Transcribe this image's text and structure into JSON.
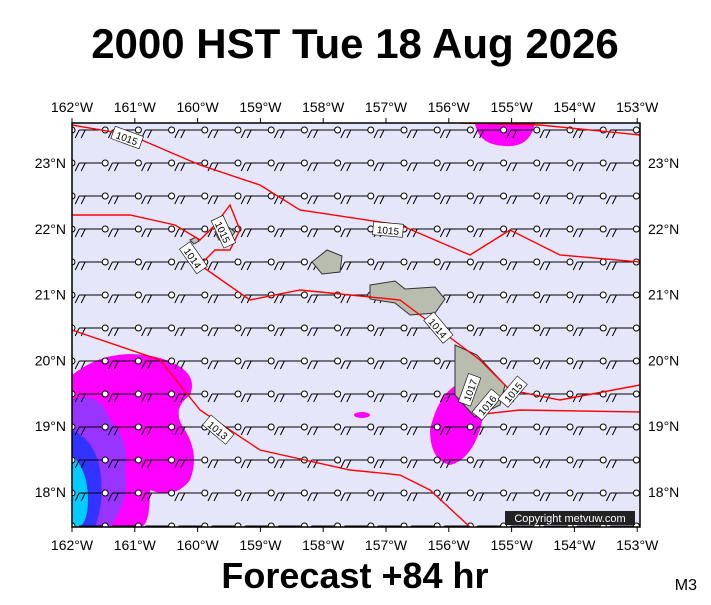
{
  "title": "2000 HST Tue 18 Aug 2026",
  "footer": "Forecast +84 hr",
  "corner": "M3",
  "copyright": "Copyright metvuw.com",
  "lon_labels": [
    "162°W",
    "161°W",
    "160°W",
    "159°W",
    "158°W",
    "157°W",
    "156°W",
    "155°W",
    "154°W",
    "153°W"
  ],
  "lat_labels": [
    "23°N",
    "22°N",
    "21°N",
    "20°N",
    "19°N",
    "18°N"
  ],
  "isobar_labels": [
    "1015",
    "1015",
    "1014",
    "1015",
    "1014",
    "1017",
    "1016",
    "1015",
    "1013"
  ]
}
